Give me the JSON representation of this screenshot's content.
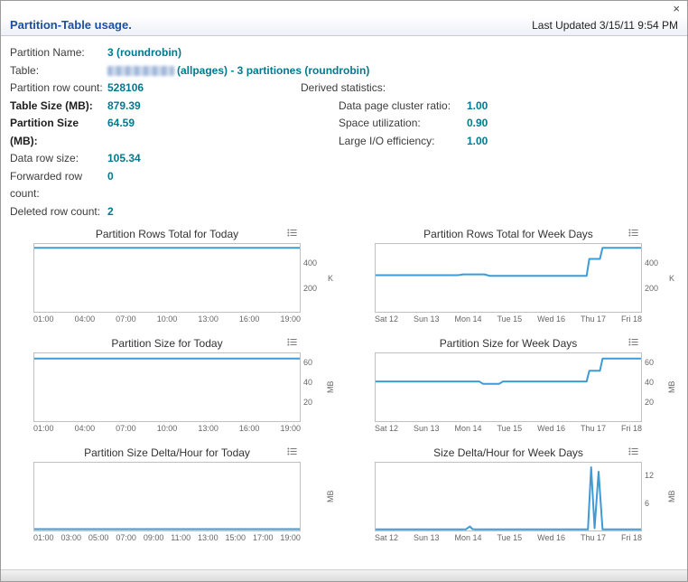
{
  "window": {
    "close_glyph": "×"
  },
  "header": {
    "title": "Partition-Table usage.",
    "last_updated": "Last Updated 3/15/11 9:54 PM"
  },
  "info": {
    "partition_name_label": "Partition Name:",
    "partition_name_value": "3 (roundrobin)",
    "table_label": "Table:",
    "table_value_visible": "(allpages) - 3 partitiones (roundrobin)",
    "left_rows": [
      {
        "label": "Partition row count:",
        "value": "528106"
      },
      {
        "label": "Table Size (MB):",
        "value": "879.39"
      },
      {
        "label": "Partition Size (MB):",
        "value": "64.59"
      },
      {
        "label": "Data row size:",
        "value": "105.34"
      },
      {
        "label": "Forwarded row count:",
        "value": "0"
      },
      {
        "label": "Deleted row count:",
        "value": "2"
      }
    ],
    "derived": {
      "header": "Derived statistics:",
      "rows": [
        {
          "label": "Data page cluster ratio:",
          "value": "1.00"
        },
        {
          "label": "Space utilization:",
          "value": "0.90"
        },
        {
          "label": "Large I/O efficiency:",
          "value": "1.00"
        }
      ]
    }
  },
  "colors": {
    "value_teal": "#00798e",
    "title_blue": "#1c4fa1",
    "line_blue": "#3e9bd5"
  },
  "chart_data": [
    {
      "type": "line",
      "title": "Partition Rows Total for Today",
      "unit": "K",
      "ylim": [
        0,
        560
      ],
      "yticks": [
        200,
        400
      ],
      "xlabels": [
        "01:00",
        "04:00",
        "07:00",
        "10:00",
        "13:00",
        "16:00",
        "19:00"
      ],
      "points": [
        [
          0,
          528
        ],
        [
          1,
          528
        ]
      ]
    },
    {
      "type": "line",
      "title": "Partition Rows Total for Week Days",
      "unit": "K",
      "ylim": [
        0,
        560
      ],
      "yticks": [
        200,
        400
      ],
      "xlabels": [
        "Sat 12",
        "Sun 13",
        "Mon 14",
        "Tue 15",
        "Wed 16",
        "Thu 17",
        "Fri 18"
      ],
      "points": [
        [
          0,
          302
        ],
        [
          0.31,
          302
        ],
        [
          0.33,
          309
        ],
        [
          0.41,
          309
        ],
        [
          0.43,
          297
        ],
        [
          0.795,
          297
        ],
        [
          0.805,
          437
        ],
        [
          0.845,
          437
        ],
        [
          0.855,
          528
        ],
        [
          1,
          528
        ]
      ]
    },
    {
      "type": "line",
      "title": "Partition Size for Today",
      "unit": "MB",
      "ylim": [
        0,
        70
      ],
      "yticks": [
        20,
        40,
        60
      ],
      "xlabels": [
        "01:00",
        "04:00",
        "07:00",
        "10:00",
        "13:00",
        "16:00",
        "19:00"
      ],
      "points": [
        [
          0,
          64.6
        ],
        [
          1,
          64.6
        ]
      ]
    },
    {
      "type": "line",
      "title": "Partition Size for Week Days",
      "unit": "MB",
      "ylim": [
        0,
        70
      ],
      "yticks": [
        20,
        40,
        60
      ],
      "xlabels": [
        "Sat 12",
        "Sun 13",
        "Mon 14",
        "Tue 15",
        "Wed 16",
        "Thu 17",
        "Fri 18"
      ],
      "points": [
        [
          0,
          41
        ],
        [
          0.39,
          41
        ],
        [
          0.405,
          38.5
        ],
        [
          0.465,
          38.5
        ],
        [
          0.48,
          41
        ],
        [
          0.795,
          41
        ],
        [
          0.805,
          52
        ],
        [
          0.845,
          52
        ],
        [
          0.855,
          64.6
        ],
        [
          1,
          64.6
        ]
      ]
    },
    {
      "type": "line",
      "title": "Partition Size Delta/Hour for Today",
      "unit": "MB",
      "ylim": [
        0,
        1
      ],
      "yticks": [],
      "xlabels": [
        "01:00",
        "03:00",
        "05:00",
        "07:00",
        "09:00",
        "11:00",
        "13:00",
        "15:00",
        "17:00",
        "19:00"
      ],
      "points": [
        [
          0,
          0.02
        ],
        [
          1,
          0.02
        ]
      ]
    },
    {
      "type": "line",
      "title": "Size Delta/Hour for Week Days",
      "unit": "MB",
      "ylim": [
        0,
        15
      ],
      "yticks": [
        6,
        12
      ],
      "xlabels": [
        "Sat 12",
        "Sun 13",
        "Mon 14",
        "Tue 15",
        "Wed 16",
        "Thu 17",
        "Fri 18"
      ],
      "points": [
        [
          0,
          0.1
        ],
        [
          0.34,
          0.1
        ],
        [
          0.355,
          0.9
        ],
        [
          0.365,
          0.3
        ],
        [
          0.375,
          0.1
        ],
        [
          0.79,
          0.1
        ],
        [
          0.8,
          0.1
        ],
        [
          0.812,
          14
        ],
        [
          0.825,
          0.5
        ],
        [
          0.84,
          13
        ],
        [
          0.855,
          0.2
        ],
        [
          1,
          0.1
        ]
      ]
    }
  ]
}
